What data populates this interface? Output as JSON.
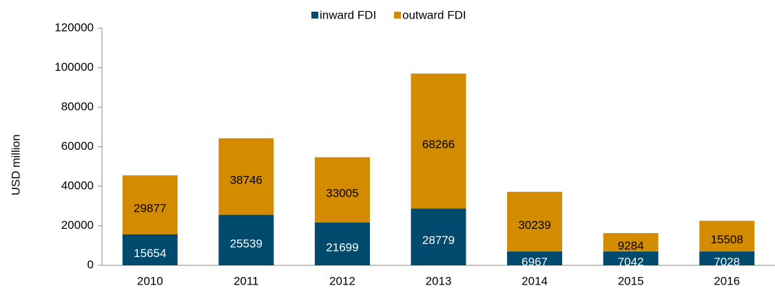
{
  "chart_data": {
    "type": "stacked_bar",
    "categories": [
      "2010",
      "2011",
      "2012",
      "2013",
      "2014",
      "2015",
      "2016"
    ],
    "series": [
      {
        "name": "inward FDI",
        "color": "#004a6e",
        "values": [
          15654,
          25539,
          21699,
          28779,
          6967,
          7042,
          7028
        ]
      },
      {
        "name": "outward FDI",
        "color": "#d38b00",
        "values": [
          29877,
          38746,
          33005,
          68266,
          30239,
          9284,
          15508
        ]
      }
    ],
    "y_label": "USD million",
    "ylim": [
      0,
      120000
    ],
    "yticks": [
      0,
      20000,
      40000,
      60000,
      80000,
      100000,
      120000
    ],
    "legend": "top",
    "grid": false
  }
}
